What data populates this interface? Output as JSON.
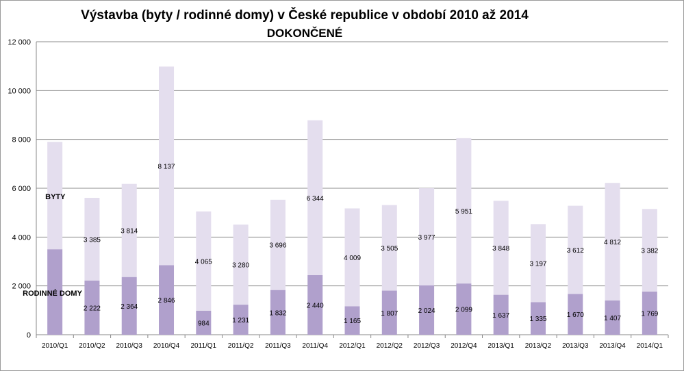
{
  "chart_data": {
    "type": "bar",
    "stacked": true,
    "title": "Výstavba (byty / rodinné domy) v České republice v období 2010 až 2014",
    "subtitle": "DOKONČENÉ",
    "xlabel": "",
    "ylabel": "",
    "ylim": [
      0,
      12000
    ],
    "yticks": [
      "0",
      "2 000",
      "4 000",
      "6 000",
      "8 000",
      "10 000",
      "12 000"
    ],
    "grid": true,
    "categories": [
      "2010/Q1",
      "2010/Q2",
      "2010/Q3",
      "2010/Q4",
      "2011/Q1",
      "2011/Q2",
      "2011/Q3",
      "2011/Q4",
      "2012/Q1",
      "2012/Q2",
      "2012/Q3",
      "2012/Q4",
      "2013/Q1",
      "2013/Q2",
      "2013/Q3",
      "2013/Q4",
      "2014/Q1"
    ],
    "series": [
      {
        "name": "RODINNÉ DOMY",
        "color": "#b0a0cc",
        "values": [
          3500,
          2222,
          2364,
          2846,
          984,
          1231,
          1832,
          2440,
          1165,
          1807,
          2024,
          2099,
          1637,
          1335,
          1670,
          1407,
          1769
        ],
        "labels": [
          "",
          "2 222",
          "2 364",
          "2 846",
          "984",
          "1 231",
          "1 832",
          "2 440",
          "1 165",
          "1 807",
          "2 024",
          "2 099",
          "1 637",
          "1 335",
          "1 670",
          "1 407",
          "1 769"
        ]
      },
      {
        "name": "BYTY",
        "color": "#e4deee",
        "values": [
          4400,
          3385,
          3814,
          8137,
          4065,
          3280,
          3696,
          6344,
          4009,
          3505,
          3977,
          5951,
          3848,
          3197,
          3612,
          4812,
          3382
        ],
        "labels": [
          "",
          "3 385",
          "3 814",
          "8 137",
          "4 065",
          "3 280",
          "3 696",
          "6 344",
          "4 009",
          "3 505",
          "3 977",
          "5 951",
          "3 848",
          "3 197",
          "3 612",
          "4 812",
          "3 382"
        ]
      }
    ],
    "series_label_positions": {
      "BYTY": "first-bar-upper",
      "RODINNÉ DOMY": "first-bar-lower"
    }
  }
}
